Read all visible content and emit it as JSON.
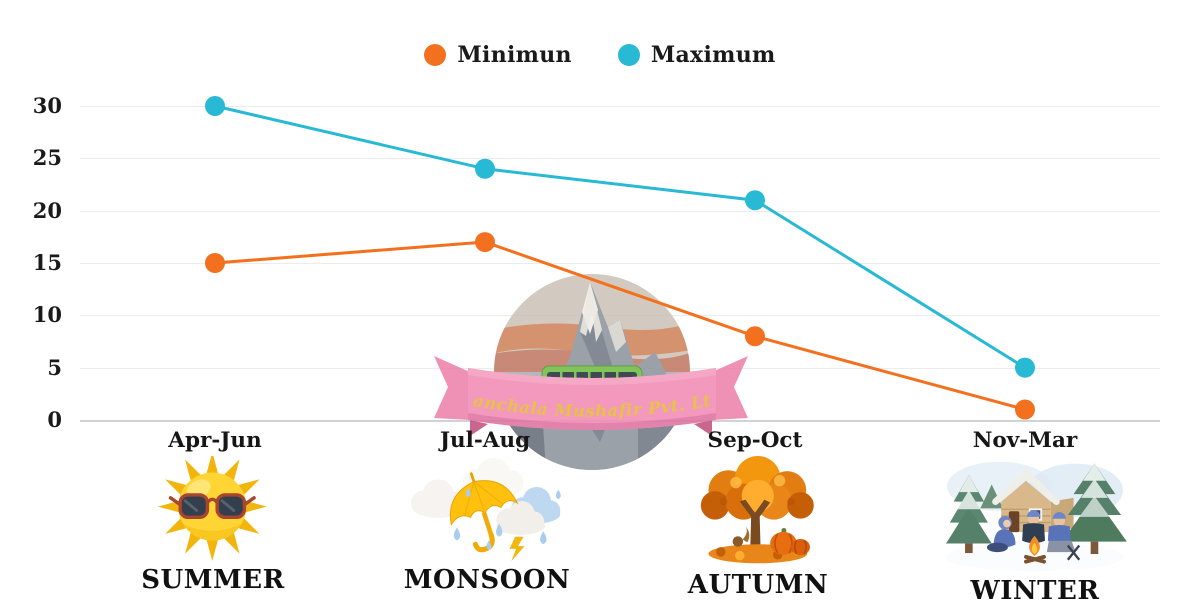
{
  "legend": {
    "items": [
      {
        "label": "Minimun",
        "color": "#F3701E"
      },
      {
        "label": "Maximum",
        "color": "#28B9D5"
      }
    ]
  },
  "chart_data": {
    "type": "line",
    "title": "",
    "categories": [
      "Apr-Jun",
      "Jul-Aug",
      "Sep-Oct",
      "Nov-Mar"
    ],
    "series": [
      {
        "name": "Minimun",
        "color": "#F3701E",
        "values": [
          15,
          17,
          8,
          1
        ]
      },
      {
        "name": "Maximum",
        "color": "#28B9D5",
        "values": [
          30,
          24,
          21,
          5
        ]
      }
    ],
    "xlabel": "",
    "ylabel": "",
    "ylim": [
      0,
      30
    ],
    "yticks": [
      0,
      5,
      10,
      15,
      20,
      25,
      30
    ],
    "grid": "horizontal",
    "legend_position": "top-center"
  },
  "seasons": [
    {
      "name": "SUMMER",
      "icon": "sun-with-sunglasses-icon"
    },
    {
      "name": "MONSOON",
      "icon": "umbrella-rain-clouds-icon"
    },
    {
      "name": "AUTUMN",
      "icon": "autumn-tree-icon"
    },
    {
      "name": "WINTER",
      "icon": "winter-campfire-scene-icon"
    }
  ],
  "watermark": {
    "company": "Manchala Mushafir Pvt. Ltd."
  },
  "colors": {
    "minimum": "#F3701E",
    "maximum": "#28B9D5",
    "grid": "#ECECEC",
    "axis_baseline": "#D2D2D2",
    "text": "#1A1A1A",
    "ribbon": "#F18CB4",
    "ribbon_text": "#E5B92F",
    "bus": "#6FBE44"
  }
}
